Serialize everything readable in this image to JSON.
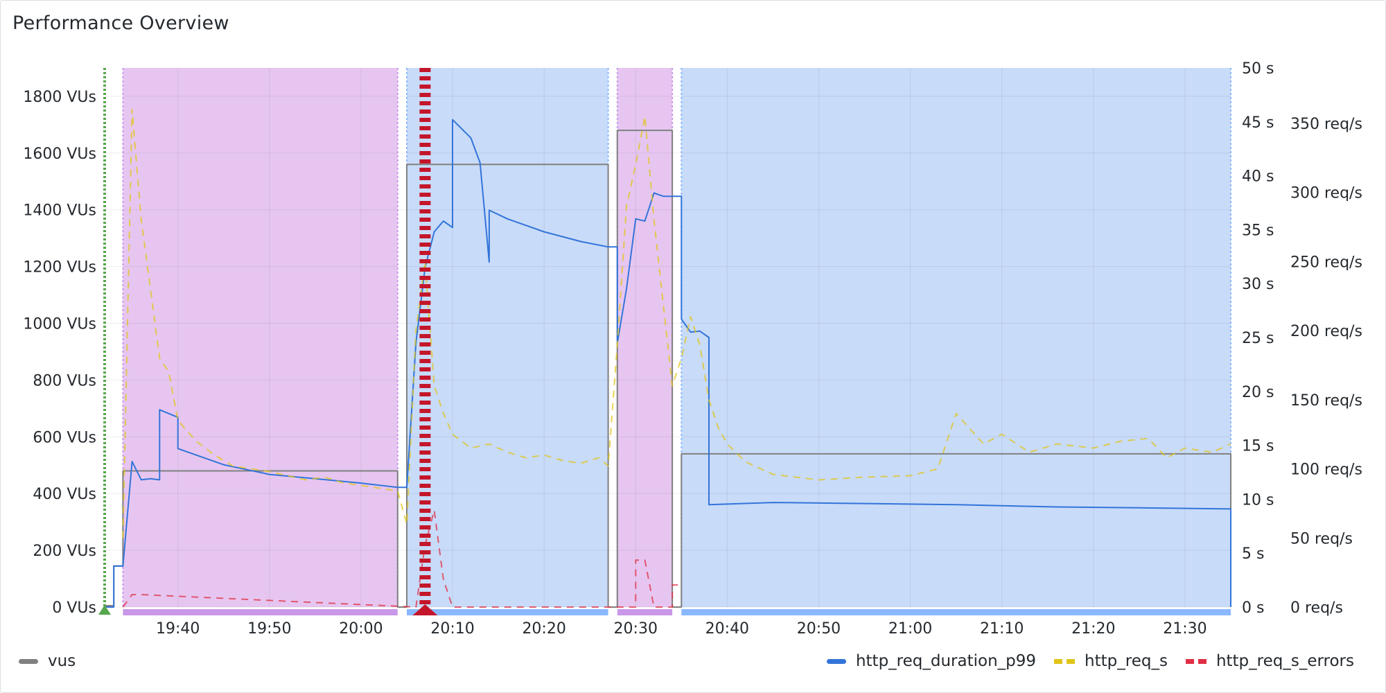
{
  "panel": {
    "title": "Performance Overview"
  },
  "legend": {
    "vus": {
      "label": "vus",
      "color": "#808080"
    },
    "p99": {
      "label": "http_req_duration_p99",
      "color": "#3274d9"
    },
    "reqs": {
      "label": "http_req_s",
      "color": "#e0c51a"
    },
    "errors": {
      "label": "http_req_s_errors",
      "color": "#e02f44"
    }
  },
  "chart_data": {
    "type": "line",
    "title": "Performance Overview",
    "x_axis": {
      "ticks": [
        "19:40",
        "19:50",
        "20:00",
        "20:10",
        "20:20",
        "20:30",
        "20:40",
        "20:50",
        "21:00",
        "21:10",
        "21:20",
        "21:30"
      ],
      "range": [
        "19:32",
        "21:35"
      ]
    },
    "y_axis_left": {
      "unit": "VUs",
      "range": [
        0,
        1900
      ],
      "ticks": [
        "0 VUs",
        "200 VUs",
        "400 VUs",
        "600 VUs",
        "800 VUs",
        "1000 VUs",
        "1200 VUs",
        "1400 VUs",
        "1600 VUs",
        "1800 VUs"
      ]
    },
    "y_axis_right1": {
      "unit": "s",
      "range": [
        0,
        50
      ],
      "ticks": [
        "0 s",
        "5 s",
        "10 s",
        "15 s",
        "20 s",
        "25 s",
        "30 s",
        "35 s",
        "40 s",
        "45 s",
        "50 s"
      ]
    },
    "y_axis_right2": {
      "unit": "req/s",
      "range": [
        0,
        390
      ],
      "ticks": [
        "0 req/s",
        "50 req/s",
        "100 req/s",
        "150 req/s",
        "200 req/s",
        "250 req/s",
        "300 req/s",
        "350 req/s"
      ]
    },
    "grid": true,
    "legend_position": "bottom",
    "regions": [
      {
        "start": "19:34",
        "end": "20:04",
        "color": "#e6c6f0",
        "band": "#c998e8"
      },
      {
        "start": "20:05",
        "end": "20:27",
        "color": "#c8dbf9",
        "band": "#8ab8ff"
      },
      {
        "start": "20:28",
        "end": "20:34",
        "color": "#e6c6f0",
        "band": "#c998e8"
      },
      {
        "start": "20:35",
        "end": "21:35",
        "color": "#c8dbf9",
        "band": "#8ab8ff"
      }
    ],
    "markers": [
      {
        "time": "19:32",
        "color": "#56a64b",
        "type": "start"
      },
      {
        "time": "20:07",
        "color": "#c4162a",
        "type": "alert"
      }
    ],
    "series": [
      {
        "name": "vus",
        "axis": "left",
        "color": "#808080",
        "style": "solid",
        "points": [
          [
            "19:32",
            5
          ],
          [
            "19:33",
            5
          ],
          [
            "19:33",
            145
          ],
          [
            "19:34",
            145
          ],
          [
            "19:34",
            480
          ],
          [
            "20:04",
            480
          ],
          [
            "20:04",
            0
          ],
          [
            "20:05",
            0
          ],
          [
            "20:05",
            1560
          ],
          [
            "20:27",
            1560
          ],
          [
            "20:27",
            0
          ],
          [
            "20:28",
            0
          ],
          [
            "20:28",
            1680
          ],
          [
            "20:34",
            1680
          ],
          [
            "20:34",
            0
          ],
          [
            "20:35",
            0
          ],
          [
            "20:35",
            540
          ],
          [
            "21:35",
            540
          ],
          [
            "21:35",
            0
          ]
        ]
      },
      {
        "name": "http_req_duration_p99",
        "axis": "right1",
        "color": "#3274d9",
        "style": "solid",
        "points": [
          [
            "19:32",
            0
          ],
          [
            "19:33",
            0
          ],
          [
            "19:33",
            3.8
          ],
          [
            "19:34",
            3.8
          ],
          [
            "19:35",
            13.5
          ],
          [
            "19:36",
            11.8
          ],
          [
            "19:37",
            11.9
          ],
          [
            "19:38",
            11.8
          ],
          [
            "19:38",
            18.3
          ],
          [
            "19:40",
            17.6
          ],
          [
            "19:40",
            14.7
          ],
          [
            "19:45",
            13.2
          ],
          [
            "19:50",
            12.3
          ],
          [
            "19:55",
            11.9
          ],
          [
            "20:00",
            11.5
          ],
          [
            "20:04",
            11.1
          ],
          [
            "20:05",
            11.1
          ],
          [
            "20:06",
            24.5
          ],
          [
            "20:07",
            31.5
          ],
          [
            "20:08",
            34.8
          ],
          [
            "20:09",
            35.8
          ],
          [
            "20:10",
            35.2
          ],
          [
            "20:10",
            45.2
          ],
          [
            "20:12",
            43.5
          ],
          [
            "20:13",
            41.2
          ],
          [
            "20:14",
            32.0
          ],
          [
            "20:14",
            36.8
          ],
          [
            "20:16",
            36.0
          ],
          [
            "20:20",
            34.8
          ],
          [
            "20:24",
            33.9
          ],
          [
            "20:27",
            33.4
          ],
          [
            "20:28",
            33.4
          ],
          [
            "20:28",
            24.5
          ],
          [
            "20:29",
            29.5
          ],
          [
            "20:30",
            36.0
          ],
          [
            "20:31",
            35.8
          ],
          [
            "20:32",
            38.4
          ],
          [
            "20:33",
            38.1
          ],
          [
            "20:35",
            38.1
          ],
          [
            "20:35",
            26.7
          ],
          [
            "20:36",
            25.5
          ],
          [
            "20:37",
            25.6
          ],
          [
            "20:38",
            25.0
          ],
          [
            "20:38",
            9.5
          ],
          [
            "20:45",
            9.7
          ],
          [
            "20:55",
            9.6
          ],
          [
            "21:05",
            9.5
          ],
          [
            "21:15",
            9.3
          ],
          [
            "21:25",
            9.2
          ],
          [
            "21:35",
            9.1
          ],
          [
            "21:35",
            0
          ]
        ]
      },
      {
        "name": "http_req_s",
        "axis": "right2",
        "color": "#e0c51a",
        "style": "dashed",
        "points": [
          [
            "19:34",
            50
          ],
          [
            "19:35",
            360
          ],
          [
            "19:36",
            280
          ],
          [
            "19:37",
            230
          ],
          [
            "19:38",
            180
          ],
          [
            "19:39",
            170
          ],
          [
            "19:40",
            135
          ],
          [
            "19:42",
            120
          ],
          [
            "19:44",
            110
          ],
          [
            "19:46",
            102
          ],
          [
            "19:48",
            100
          ],
          [
            "19:50",
            98
          ],
          [
            "19:52",
            95
          ],
          [
            "19:54",
            92
          ],
          [
            "19:56",
            94
          ],
          [
            "19:58",
            90
          ],
          [
            "20:00",
            88
          ],
          [
            "20:02",
            86
          ],
          [
            "20:04",
            84
          ],
          [
            "20:05",
            60
          ],
          [
            "20:06",
            200
          ],
          [
            "20:07",
            250
          ],
          [
            "20:08",
            160
          ],
          [
            "20:09",
            140
          ],
          [
            "20:10",
            125
          ],
          [
            "20:12",
            115
          ],
          [
            "20:14",
            118
          ],
          [
            "20:16",
            112
          ],
          [
            "20:18",
            108
          ],
          [
            "20:20",
            110
          ],
          [
            "20:22",
            106
          ],
          [
            "20:24",
            104
          ],
          [
            "20:26",
            108
          ],
          [
            "20:27",
            102
          ],
          [
            "20:28",
            190
          ],
          [
            "20:29",
            290
          ],
          [
            "20:30",
            320
          ],
          [
            "20:31",
            355
          ],
          [
            "20:32",
            280
          ],
          [
            "20:33",
            220
          ],
          [
            "20:34",
            160
          ],
          [
            "20:35",
            180
          ],
          [
            "20:36",
            210
          ],
          [
            "20:37",
            190
          ],
          [
            "20:38",
            150
          ],
          [
            "20:39",
            130
          ],
          [
            "20:40",
            118
          ],
          [
            "20:42",
            105
          ],
          [
            "20:45",
            96
          ],
          [
            "20:50",
            92
          ],
          [
            "20:55",
            94
          ],
          [
            "21:00",
            95
          ],
          [
            "21:03",
            100
          ],
          [
            "21:05",
            140
          ],
          [
            "21:08",
            118
          ],
          [
            "21:10",
            125
          ],
          [
            "21:13",
            112
          ],
          [
            "21:16",
            118
          ],
          [
            "21:20",
            115
          ],
          [
            "21:23",
            120
          ],
          [
            "21:26",
            122
          ],
          [
            "21:28",
            108
          ],
          [
            "21:30",
            115
          ],
          [
            "21:33",
            112
          ],
          [
            "21:35",
            118
          ]
        ]
      },
      {
        "name": "http_req_s_errors",
        "axis": "right2",
        "color": "#e02f44",
        "style": "dashed",
        "points": [
          [
            "19:34",
            0
          ],
          [
            "19:35",
            9
          ],
          [
            "19:36",
            9
          ],
          [
            "20:06",
            0
          ],
          [
            "20:07",
            45
          ],
          [
            "20:08",
            70
          ],
          [
            "20:09",
            20
          ],
          [
            "20:10",
            0
          ],
          [
            "20:30",
            0
          ],
          [
            "20:30",
            34
          ],
          [
            "20:31",
            34
          ],
          [
            "20:32",
            0
          ],
          [
            "20:34",
            0
          ],
          [
            "20:34",
            16
          ],
          [
            "20:35",
            16
          ]
        ]
      }
    ]
  }
}
